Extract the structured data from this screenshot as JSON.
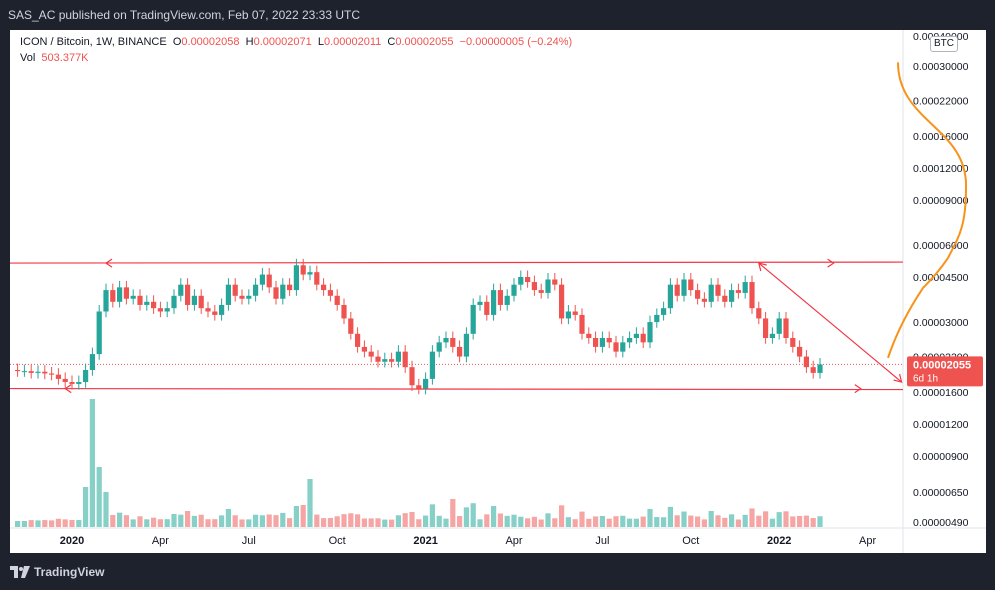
{
  "header": {
    "published": "SAS_AC published on TradingView.com, Feb 07, 2022 23:33 UTC"
  },
  "legend": {
    "symbol": "ICON / Bitcoin, 1W, BINANCE",
    "open_k": "O",
    "open_v": "0.00002058",
    "high_k": "H",
    "high_v": "0.00002071",
    "low_k": "L",
    "low_v": "0.00002011",
    "close_k": "C",
    "close_v": "0.00002055",
    "change": "−0.00000005 (−0.24%)",
    "vol_k": "Vol",
    "vol_v": "503.377K"
  },
  "currency_badge": "BTC",
  "price_badge": {
    "price": "0.00002055",
    "countdown": "6d 1h"
  },
  "footer": {
    "brand": "TradingView"
  },
  "colors": {
    "up": "#26a69a",
    "down": "#ef5350",
    "up_vol": "#86d0c8",
    "down_vol": "#f5a6a4",
    "projection": "#f7931a",
    "lines": "#f23645"
  },
  "chart_data": {
    "type": "candlestick",
    "y_scale": "log",
    "y_ticks": [
      "0.00040000",
      "0.00030000",
      "0.00022000",
      "0.00016000",
      "0.00012000",
      "0.00009000",
      "0.00006000",
      "0.00004500",
      "0.00003000",
      "0.00002200",
      "0.00001600",
      "0.00001200",
      "0.00000900",
      "0.00000650",
      "0.00000490"
    ],
    "y_tick_values": [
      0.0004,
      0.0003,
      0.00022,
      0.00016,
      0.00012,
      9e-05,
      6e-05,
      4.5e-05,
      3e-05,
      2.2e-05,
      1.6e-05,
      1.2e-05,
      9e-06,
      6.5e-06,
      4.9e-06
    ],
    "x_ticks": [
      "2020",
      "Apr",
      "Jul",
      "Oct",
      "2021",
      "Apr",
      "Jul",
      "Oct",
      "2022",
      "Apr"
    ],
    "x_tick_weeks": [
      0,
      13,
      26,
      39,
      52,
      65,
      78,
      91,
      104,
      117
    ],
    "start_week_offset": -8,
    "candles_close": [
      1.93e-05,
      1.93e-05,
      1.9e-05,
      1.92e-05,
      1.89e-05,
      1.87e-05,
      1.8e-05,
      1.75e-05,
      1.72e-05,
      1.75e-05,
      1.95e-05,
      2.25e-05,
      3.3e-05,
      4e-05,
      3.6e-05,
      4.1e-05,
      3.7e-05,
      3.8e-05,
      3.5e-05,
      3.6e-05,
      3.4e-05,
      3.3e-05,
      3.4e-05,
      3.8e-05,
      4.2e-05,
      3.5e-05,
      3.8e-05,
      3.4e-05,
      3.3e-05,
      3.2e-05,
      3.5e-05,
      4.2e-05,
      3.8e-05,
      3.7e-05,
      3.8e-05,
      4.2e-05,
      4.6e-05,
      4.1e-05,
      3.7e-05,
      4.2e-05,
      4e-05,
      5e-05,
      4.6e-05,
      4.7e-05,
      4.2e-05,
      4e-05,
      3.8e-05,
      3.5e-05,
      3.1e-05,
      2.7e-05,
      2.4e-05,
      2.3e-05,
      2.2e-05,
      2.1e-05,
      2.15e-05,
      2.1e-05,
      2.3e-05,
      2e-05,
      1.7e-05,
      1.65e-05,
      1.8e-05,
      2.3e-05,
      2.5e-05,
      2.6e-05,
      2.4e-05,
      2.2e-05,
      2.7e-05,
      3.5e-05,
      3.6e-05,
      3.2e-05,
      4e-05,
      3.5e-05,
      3.8e-05,
      4.2e-05,
      4.5e-05,
      4.3e-05,
      4e-05,
      3.9e-05,
      4.4e-05,
      4.2e-05,
      3.1e-05,
      3.3e-05,
      3.2e-05,
      2.7e-05,
      2.6e-05,
      2.4e-05,
      2.6e-05,
      2.5e-05,
      2.3e-05,
      2.5e-05,
      2.6e-05,
      2.7e-05,
      2.5e-05,
      3e-05,
      3.2e-05,
      3.4e-05,
      4.2e-05,
      3.8e-05,
      4.4e-05,
      4e-05,
      3.7e-05,
      3.6e-05,
      4.2e-05,
      3.8e-05,
      3.6e-05,
      4e-05,
      3.9e-05,
      4.3e-05,
      3.4e-05,
      3.1e-05,
      2.6e-05,
      2.7e-05,
      3.1e-05,
      2.6e-05,
      2.4e-05,
      2.2e-05,
      2e-05,
      1.9e-05,
      2.05e-05
    ],
    "horizontal_levels": [
      5.1e-05,
      1.65e-05
    ],
    "descending_line": {
      "from_week": 101,
      "from_price": 5.1e-05,
      "to_week": 122,
      "to_price": 1.75e-05
    },
    "projection": {
      "from_week": 120,
      "peak_price": 0.00031
    }
  }
}
